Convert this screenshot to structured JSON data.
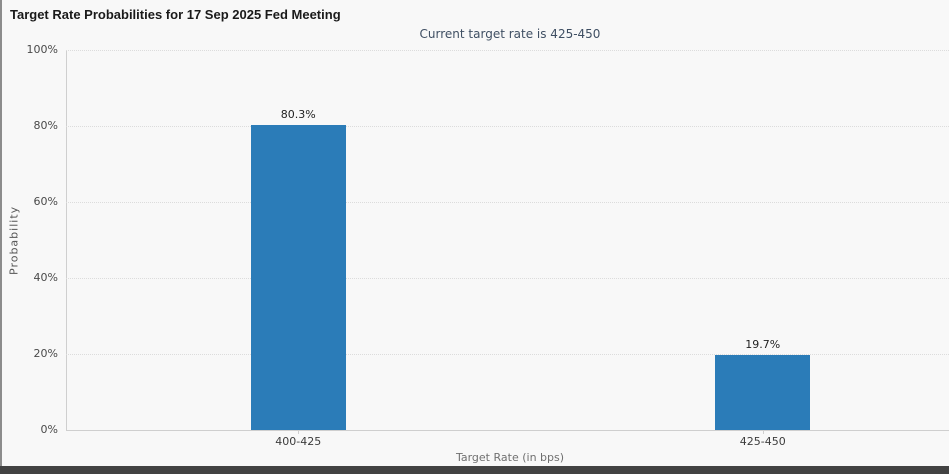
{
  "page": {
    "title": "Target Rate Probabilities for 17 Sep 2025 Fed Meeting",
    "subtitle": "Current target rate is 425-450"
  },
  "chart_data": {
    "type": "bar",
    "title": "Target Rate Probabilities for 17 Sep 2025 Fed Meeting",
    "subtitle": "Current target rate is 425-450",
    "categories": [
      "400-425",
      "425-450"
    ],
    "values": [
      80.3,
      19.7
    ],
    "value_labels": [
      "80.3%",
      "19.7%"
    ],
    "xlabel": "Target Rate (in bps)",
    "ylabel": "Probability",
    "ylim": [
      0,
      100
    ],
    "ytick_labels": [
      "0%",
      "20%",
      "40%",
      "60%",
      "80%",
      "100%"
    ],
    "ytick_values": [
      0,
      20,
      40,
      60,
      80,
      100
    ],
    "grid": "horizontal-dotted",
    "legend": "none",
    "bar_color": "#2b7cb8"
  },
  "colors": {
    "background": "#f8f8f8",
    "bar": "#2b7cb8",
    "subtitle_text": "#3f4f63",
    "gridline": "#dcdcdc",
    "axis_line": "#cfcfcf",
    "bottom_bar": "#424242"
  }
}
